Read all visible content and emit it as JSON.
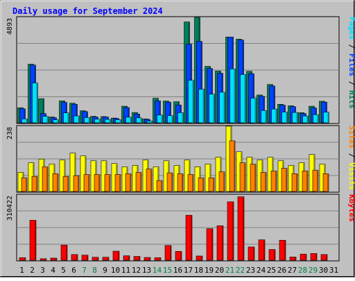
{
  "chart_data": {
    "type": "bar",
    "title": "Daily usage for September 2024",
    "days": [
      "1",
      "2",
      "3",
      "4",
      "5",
      "6",
      "7",
      "8",
      "9",
      "10",
      "11",
      "12",
      "13",
      "14",
      "15",
      "16",
      "17",
      "18",
      "19",
      "20",
      "21",
      "22",
      "23",
      "24",
      "25",
      "26",
      "27",
      "28",
      "29",
      "30",
      "31"
    ],
    "weekend_days": [
      "7",
      "8",
      "14",
      "15",
      "21",
      "22",
      "28",
      "29"
    ],
    "panels": [
      {
        "id": "top",
        "ymax_label": "4893",
        "ymax": 4893,
        "series": [
          {
            "name": "Hits",
            "color": "#00805c",
            "values": [
              700,
              2720,
              1120,
              270,
              1020,
              910,
              560,
              300,
              290,
              220,
              770,
              480,
              180,
              1140,
              1010,
              980,
              4680,
              4893,
              2620,
              2400,
              3980,
              3880,
              2390,
              1290,
              1780,
              860,
              790,
              470,
              770,
              1000,
              0
            ]
          },
          {
            "name": "Files",
            "color": "#0042ff",
            "values": [
              650,
              2680,
              430,
              240,
              950,
              860,
              520,
              270,
              270,
              200,
              710,
              410,
              160,
              1020,
              960,
              830,
              3650,
              3780,
              2520,
              2300,
              3980,
              3840,
              2280,
              1230,
              1710,
              820,
              750,
              430,
              690,
              960,
              0
            ]
          },
          {
            "name": "Pages",
            "color": "#00e0ff",
            "values": [
              180,
              1850,
              300,
              140,
              460,
              320,
              240,
              170,
              160,
              140,
              260,
              230,
              80,
              360,
              330,
              470,
              1970,
              1560,
              1330,
              1420,
              2500,
              2240,
              1140,
              570,
              640,
              500,
              480,
              320,
              380,
              490,
              0
            ]
          }
        ]
      },
      {
        "id": "middle",
        "ymax_label": "238",
        "ymax": 238,
        "series": [
          {
            "name": "Visits",
            "color": "#ffff00",
            "values": [
              70,
              105,
              118,
              100,
              115,
              140,
              130,
              112,
              112,
              102,
              90,
              95,
              115,
              90,
              112,
              95,
              115,
              90,
              100,
              125,
              238,
              145,
              125,
              115,
              125,
              112,
              95,
              105,
              135,
              100,
              0
            ]
          },
          {
            "name": "Sites",
            "color": "#ff8000",
            "values": [
              50,
              55,
              90,
              65,
              55,
              58,
              62,
              62,
              62,
              62,
              65,
              70,
              82,
              40,
              68,
              65,
              62,
              50,
              50,
              72,
              185,
              105,
              100,
              70,
              75,
              85,
              65,
              75,
              78,
              65,
              0
            ]
          }
        ]
      },
      {
        "id": "bottom",
        "ymax_label": "310422",
        "ymax": 310422,
        "series": [
          {
            "name": "KBytes",
            "color": "#ff0000",
            "values": [
              12000,
              190000,
              7000,
              10000,
              72000,
              27000,
              24000,
              14000,
              14000,
              43000,
              21000,
              18000,
              13000,
              12000,
              70000,
              42000,
              214000,
              20000,
              150000,
              164000,
              278000,
              302000,
              63000,
              97000,
              51000,
              95000,
              15000,
              29000,
              32000,
              27000,
              0
            ]
          }
        ]
      }
    ],
    "grid": true
  }
}
